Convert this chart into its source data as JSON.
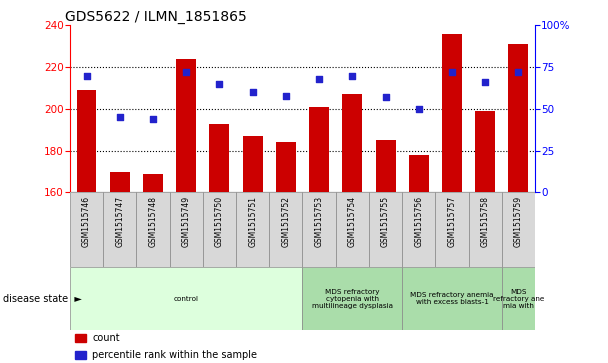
{
  "title": "GDS5622 / ILMN_1851865",
  "samples": [
    "GSM1515746",
    "GSM1515747",
    "GSM1515748",
    "GSM1515749",
    "GSM1515750",
    "GSM1515751",
    "GSM1515752",
    "GSM1515753",
    "GSM1515754",
    "GSM1515755",
    "GSM1515756",
    "GSM1515757",
    "GSM1515758",
    "GSM1515759"
  ],
  "counts": [
    209,
    170,
    169,
    224,
    193,
    187,
    184,
    201,
    207,
    185,
    178,
    236,
    199,
    231
  ],
  "percentiles": [
    70,
    45,
    44,
    72,
    65,
    60,
    58,
    68,
    70,
    57,
    50,
    72,
    66,
    72
  ],
  "ylim_left": [
    160,
    240
  ],
  "yticks_left": [
    160,
    180,
    200,
    220,
    240
  ],
  "yticks_right": [
    0,
    25,
    50,
    75,
    100
  ],
  "bar_color": "#cc0000",
  "dot_color": "#2222cc",
  "grid_color": "#000000",
  "bg_color": "#ffffff",
  "disease_groups": [
    {
      "label": "control",
      "start": 0,
      "end": 7,
      "color": "#ddffdd"
    },
    {
      "label": "MDS refractory\ncytopenia with\nmultilineage dysplasia",
      "start": 7,
      "end": 10,
      "color": "#aaddaa"
    },
    {
      "label": "MDS refractory anemia\nwith excess blasts-1",
      "start": 10,
      "end": 13,
      "color": "#aaddaa"
    },
    {
      "label": "MDS\nrefractory ane\nmia with",
      "start": 13,
      "end": 14,
      "color": "#aaddaa"
    }
  ],
  "legend_items": [
    {
      "label": "count",
      "color": "#cc0000"
    },
    {
      "label": "percentile rank within the sample",
      "color": "#2222cc"
    }
  ]
}
